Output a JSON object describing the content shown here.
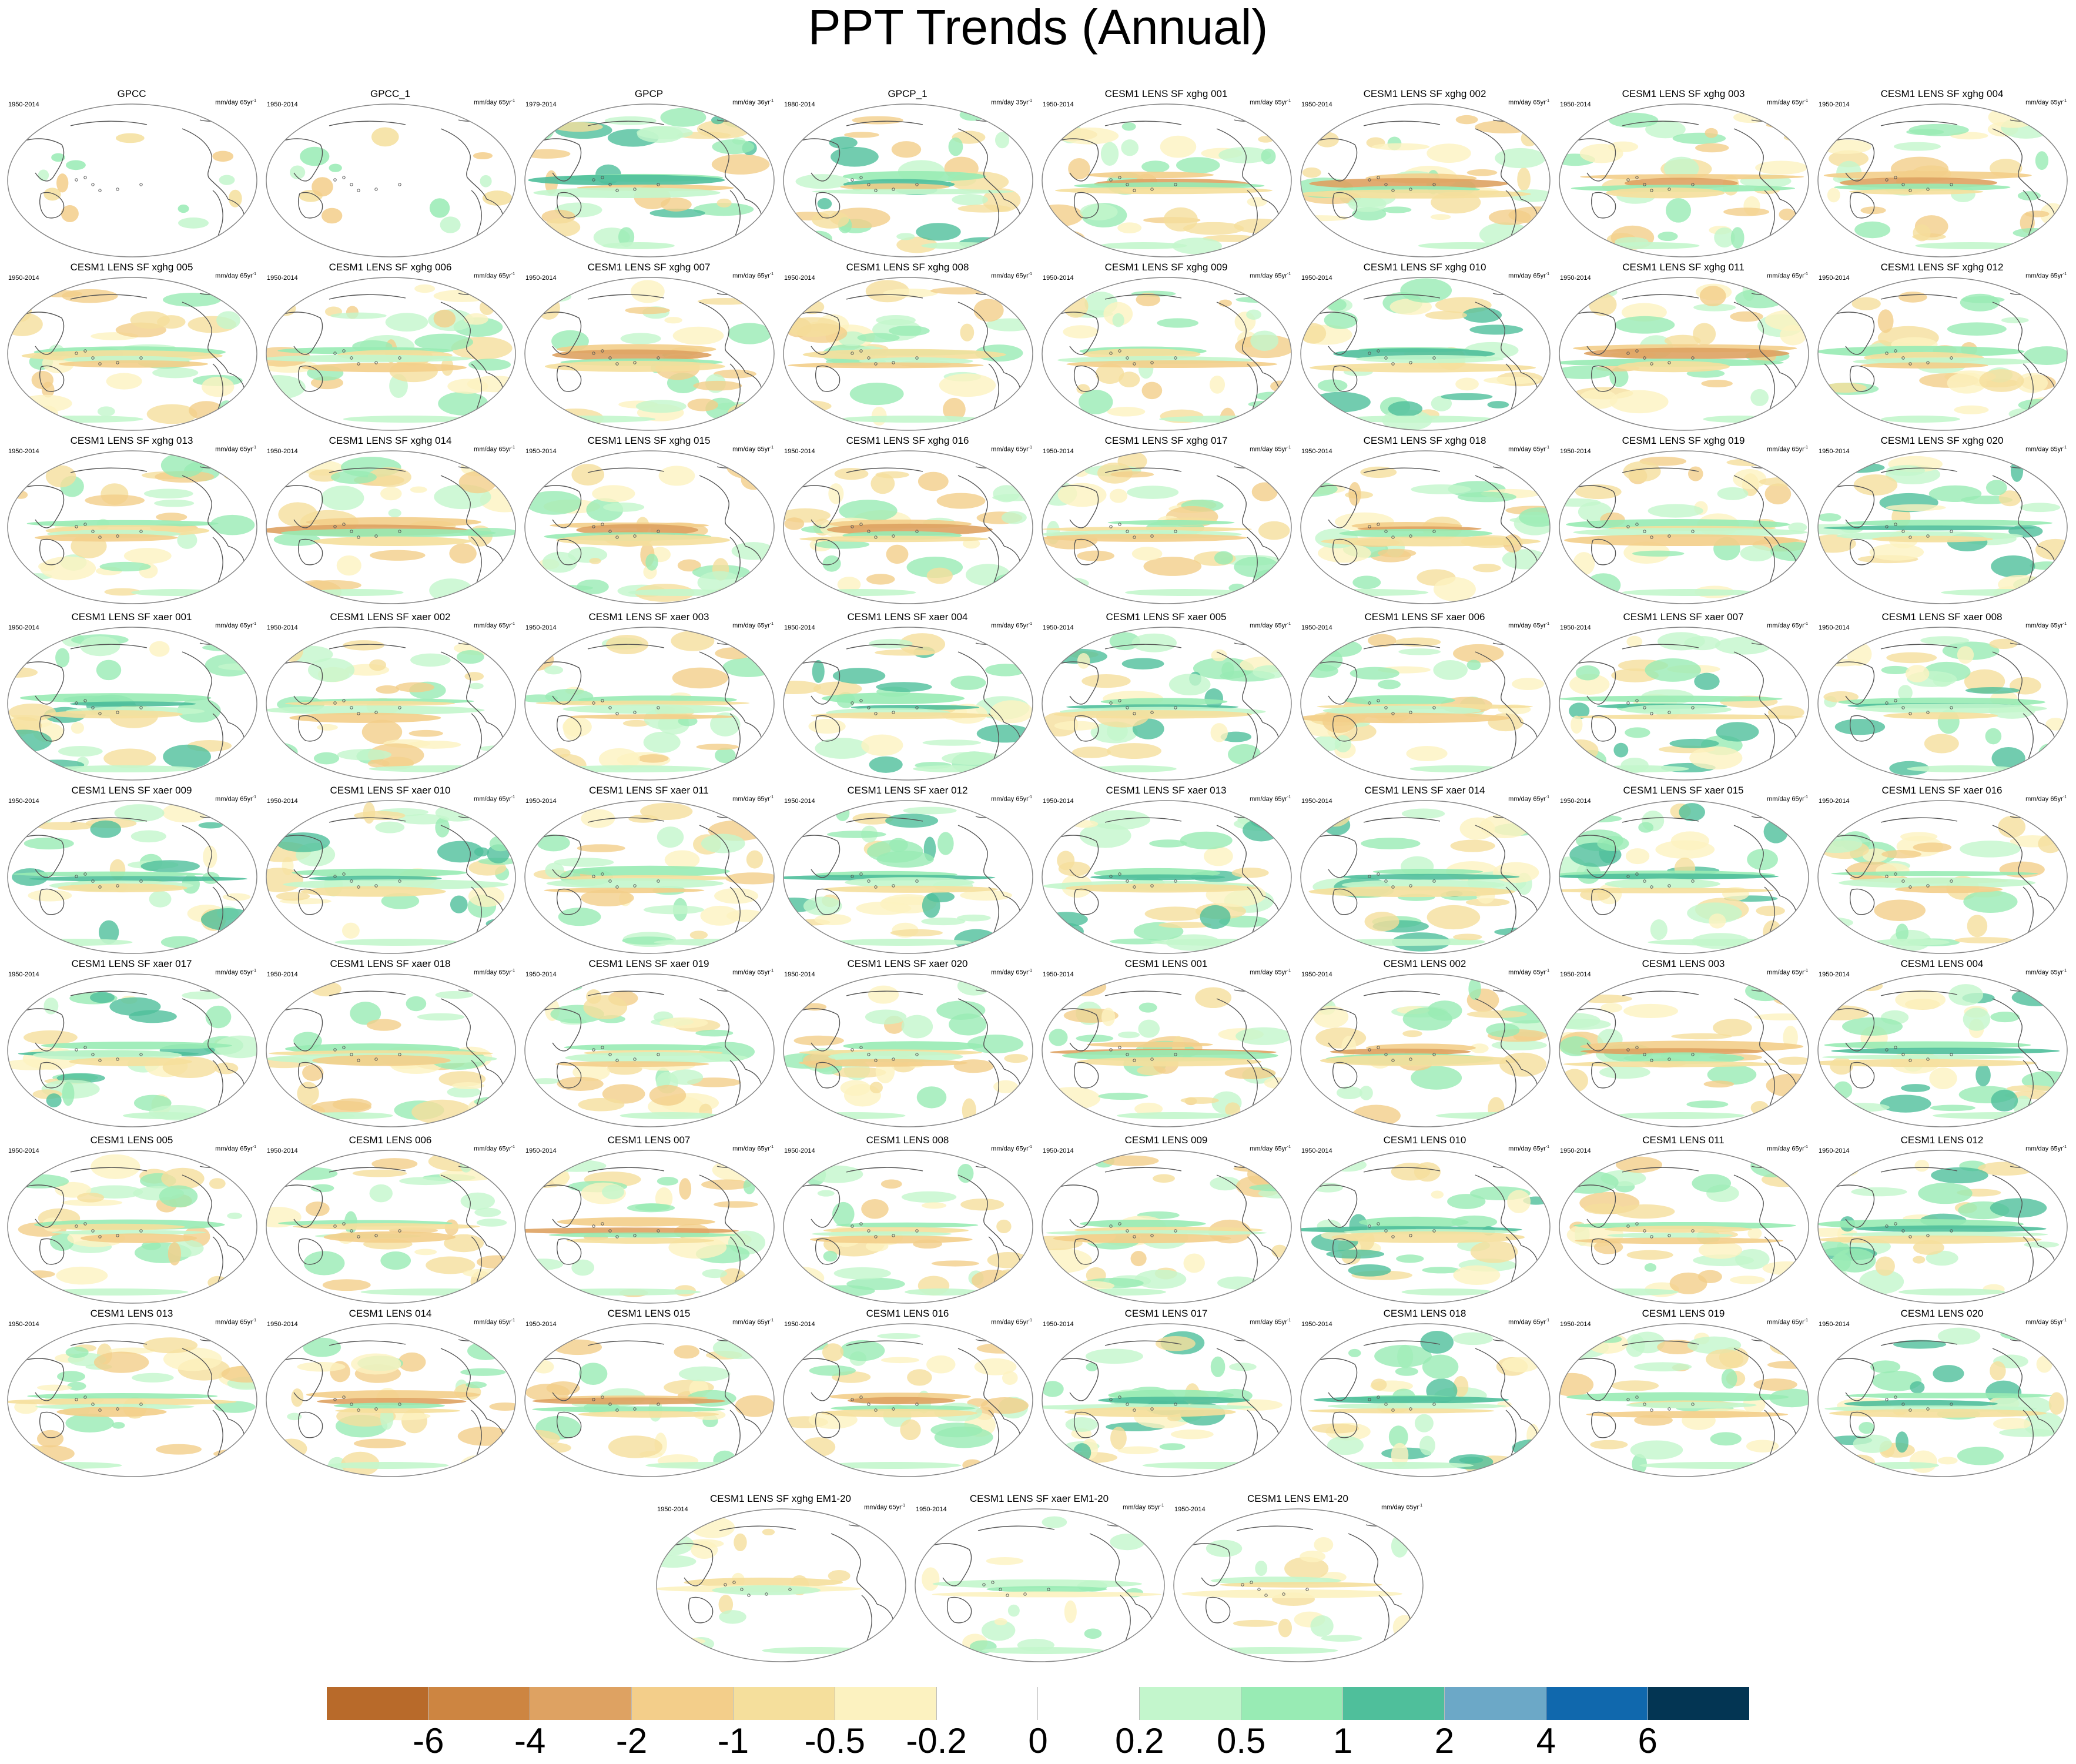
{
  "title": "PPT Trends (Annual)",
  "units_base": "mm/day",
  "units_sup": "-1",
  "panels": [
    {
      "name": "GPCC",
      "years": "1950-2014",
      "period": "65yr",
      "field": "obs-sparse"
    },
    {
      "name": "GPCC_1",
      "years": "1950-2014",
      "period": "65yr",
      "field": "obs-sparse"
    },
    {
      "name": "GPCP",
      "years": "1979-2014",
      "period": "36yr",
      "field": "obs-wet"
    },
    {
      "name": "GPCP_1",
      "years": "1980-2014",
      "period": "35yr",
      "field": "obs-wet"
    },
    {
      "name": "CESM1 LENS SF xghg 001",
      "years": "1950-2014",
      "period": "65yr",
      "field": "dry"
    },
    {
      "name": "CESM1 LENS SF xghg 002",
      "years": "1950-2014",
      "period": "65yr",
      "field": "dry"
    },
    {
      "name": "CESM1 LENS SF xghg 003",
      "years": "1950-2014",
      "period": "65yr",
      "field": "dry"
    },
    {
      "name": "CESM1 LENS SF xghg 004",
      "years": "1950-2014",
      "period": "65yr",
      "field": "dry"
    },
    {
      "name": "CESM1 LENS SF xghg 005",
      "years": "1950-2014",
      "period": "65yr",
      "field": "mixed"
    },
    {
      "name": "CESM1 LENS SF xghg 006",
      "years": "1950-2014",
      "period": "65yr",
      "field": "mixed"
    },
    {
      "name": "CESM1 LENS SF xghg 007",
      "years": "1950-2014",
      "period": "65yr",
      "field": "dry"
    },
    {
      "name": "CESM1 LENS SF xghg 008",
      "years": "1950-2014",
      "period": "65yr",
      "field": "mixed"
    },
    {
      "name": "CESM1 LENS SF xghg 009",
      "years": "1950-2014",
      "period": "65yr",
      "field": "mixed"
    },
    {
      "name": "CESM1 LENS SF xghg 010",
      "years": "1950-2014",
      "period": "65yr",
      "field": "wet"
    },
    {
      "name": "CESM1 LENS SF xghg 011",
      "years": "1950-2014",
      "period": "65yr",
      "field": "dry"
    },
    {
      "name": "CESM1 LENS SF xghg 012",
      "years": "1950-2014",
      "period": "65yr",
      "field": "mixed"
    },
    {
      "name": "CESM1 LENS SF xghg 013",
      "years": "1950-2014",
      "period": "65yr",
      "field": "mixed"
    },
    {
      "name": "CESM1 LENS SF xghg 014",
      "years": "1950-2014",
      "period": "65yr",
      "field": "dry"
    },
    {
      "name": "CESM1 LENS SF xghg 015",
      "years": "1950-2014",
      "period": "65yr",
      "field": "dry"
    },
    {
      "name": "CESM1 LENS SF xghg 016",
      "years": "1950-2014",
      "period": "65yr",
      "field": "dry"
    },
    {
      "name": "CESM1 LENS SF xghg 017",
      "years": "1950-2014",
      "period": "65yr",
      "field": "mixed"
    },
    {
      "name": "CESM1 LENS SF xghg 018",
      "years": "1950-2014",
      "period": "65yr",
      "field": "dry"
    },
    {
      "name": "CESM1 LENS SF xghg 019",
      "years": "1950-2014",
      "period": "65yr",
      "field": "mixed"
    },
    {
      "name": "CESM1 LENS SF xghg 020",
      "years": "1950-2014",
      "period": "65yr",
      "field": "wet"
    },
    {
      "name": "CESM1 LENS SF xaer 001",
      "years": "1950-2014",
      "period": "65yr",
      "field": "wet"
    },
    {
      "name": "CESM1 LENS SF xaer 002",
      "years": "1950-2014",
      "period": "65yr",
      "field": "mixed"
    },
    {
      "name": "CESM1 LENS SF xaer 003",
      "years": "1950-2014",
      "period": "65yr",
      "field": "mixed"
    },
    {
      "name": "CESM1 LENS SF xaer 004",
      "years": "1950-2014",
      "period": "65yr",
      "field": "wet"
    },
    {
      "name": "CESM1 LENS SF xaer 005",
      "years": "1950-2014",
      "period": "65yr",
      "field": "wet"
    },
    {
      "name": "CESM1 LENS SF xaer 006",
      "years": "1950-2014",
      "period": "65yr",
      "field": "mixed"
    },
    {
      "name": "CESM1 LENS SF xaer 007",
      "years": "1950-2014",
      "period": "65yr",
      "field": "wet"
    },
    {
      "name": "CESM1 LENS SF xaer 008",
      "years": "1950-2014",
      "period": "65yr",
      "field": "wet"
    },
    {
      "name": "CESM1 LENS SF xaer 009",
      "years": "1950-2014",
      "period": "65yr",
      "field": "wet"
    },
    {
      "name": "CESM1 LENS SF xaer 010",
      "years": "1950-2014",
      "period": "65yr",
      "field": "wet"
    },
    {
      "name": "CESM1 LENS SF xaer 011",
      "years": "1950-2014",
      "period": "65yr",
      "field": "mixed"
    },
    {
      "name": "CESM1 LENS SF xaer 012",
      "years": "1950-2014",
      "period": "65yr",
      "field": "wet"
    },
    {
      "name": "CESM1 LENS SF xaer 013",
      "years": "1950-2014",
      "period": "65yr",
      "field": "wet"
    },
    {
      "name": "CESM1 LENS SF xaer 014",
      "years": "1950-2014",
      "period": "65yr",
      "field": "wet"
    },
    {
      "name": "CESM1 LENS SF xaer 015",
      "years": "1950-2014",
      "period": "65yr",
      "field": "wet"
    },
    {
      "name": "CESM1 LENS SF xaer 016",
      "years": "1950-2014",
      "period": "65yr",
      "field": "mixed"
    },
    {
      "name": "CESM1 LENS SF xaer 017",
      "years": "1950-2014",
      "period": "65yr",
      "field": "wet"
    },
    {
      "name": "CESM1 LENS SF xaer 018",
      "years": "1950-2014",
      "period": "65yr",
      "field": "mixed"
    },
    {
      "name": "CESM1 LENS SF xaer 019",
      "years": "1950-2014",
      "period": "65yr",
      "field": "mixed"
    },
    {
      "name": "CESM1 LENS SF xaer 020",
      "years": "1950-2014",
      "period": "65yr",
      "field": "mixed"
    },
    {
      "name": "CESM1 LENS 001",
      "years": "1950-2014",
      "period": "65yr",
      "field": "dry"
    },
    {
      "name": "CESM1 LENS 002",
      "years": "1950-2014",
      "period": "65yr",
      "field": "dry"
    },
    {
      "name": "CESM1 LENS 003",
      "years": "1950-2014",
      "period": "65yr",
      "field": "dry"
    },
    {
      "name": "CESM1 LENS 004",
      "years": "1950-2014",
      "period": "65yr",
      "field": "wet"
    },
    {
      "name": "CESM1 LENS 005",
      "years": "1950-2014",
      "period": "65yr",
      "field": "mixed"
    },
    {
      "name": "CESM1 LENS 006",
      "years": "1950-2014",
      "period": "65yr",
      "field": "mixed"
    },
    {
      "name": "CESM1 LENS 007",
      "years": "1950-2014",
      "period": "65yr",
      "field": "dry"
    },
    {
      "name": "CESM1 LENS 008",
      "years": "1950-2014",
      "period": "65yr",
      "field": "mixed"
    },
    {
      "name": "CESM1 LENS 009",
      "years": "1950-2014",
      "period": "65yr",
      "field": "mixed"
    },
    {
      "name": "CESM1 LENS 010",
      "years": "1950-2014",
      "period": "65yr",
      "field": "wet"
    },
    {
      "name": "CESM1 LENS 011",
      "years": "1950-2014",
      "period": "65yr",
      "field": "mixed"
    },
    {
      "name": "CESM1 LENS 012",
      "years": "1950-2014",
      "period": "65yr",
      "field": "wet"
    },
    {
      "name": "CESM1 LENS 013",
      "years": "1950-2014",
      "period": "65yr",
      "field": "mixed"
    },
    {
      "name": "CESM1 LENS 014",
      "years": "1950-2014",
      "period": "65yr",
      "field": "dry"
    },
    {
      "name": "CESM1 LENS 015",
      "years": "1950-2014",
      "period": "65yr",
      "field": "dry"
    },
    {
      "name": "CESM1 LENS 016",
      "years": "1950-2014",
      "period": "65yr",
      "field": "dry"
    },
    {
      "name": "CESM1 LENS 017",
      "years": "1950-2014",
      "period": "65yr",
      "field": "wet"
    },
    {
      "name": "CESM1 LENS 018",
      "years": "1950-2014",
      "period": "65yr",
      "field": "wet"
    },
    {
      "name": "CESM1 LENS 019",
      "years": "1950-2014",
      "period": "65yr",
      "field": "mixed"
    },
    {
      "name": "CESM1 LENS 020",
      "years": "1950-2014",
      "period": "65yr",
      "field": "wet"
    },
    {
      "name": "CESM1 LENS SF xghg EM1-20",
      "years": "1950-2014",
      "period": "65yr",
      "field": "em-dry"
    },
    {
      "name": "CESM1 LENS SF xaer EM1-20",
      "years": "1950-2014",
      "period": "65yr",
      "field": "em-wet"
    },
    {
      "name": "CESM1 LENS EM1-20",
      "years": "1950-2014",
      "period": "65yr",
      "field": "em-mixed"
    }
  ],
  "colorbar": {
    "colors": [
      "#b86a2a",
      "#cd8541",
      "#dea262",
      "#f3ce8a",
      "#f5df9c",
      "#fcf2c0",
      "#ffffff",
      "#ffffff",
      "#c3f6cc",
      "#98ebb4",
      "#4fbf9b",
      "#6ca8c7",
      "#1068ad",
      "#033553"
    ],
    "labels": [
      "-6",
      "-4",
      "-2",
      "-1",
      "-0.5",
      "-0.2",
      "0",
      "0.2",
      "0.5",
      "1",
      "2",
      "4",
      "6"
    ]
  }
}
